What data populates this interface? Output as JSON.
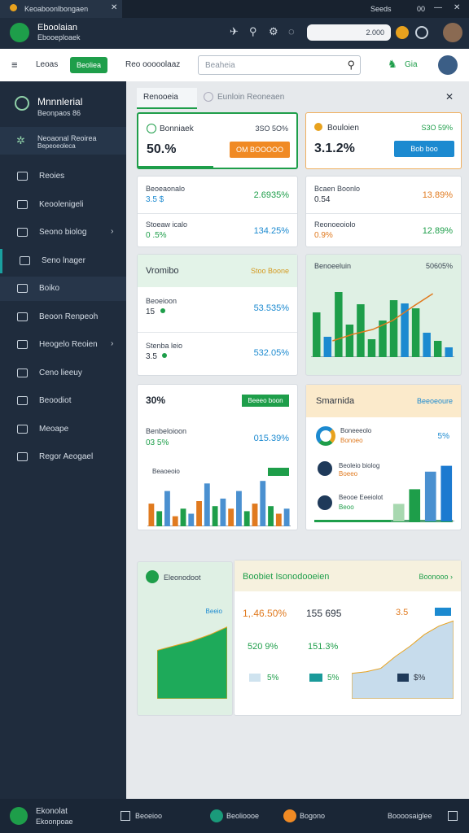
{
  "window": {
    "tab": "Keoaboonlbongaen",
    "status": "Seeds",
    "clock": "00"
  },
  "header": {
    "app_name": "Eboolaian",
    "app_sub": "Ebooeploaek",
    "search_value": "2.000"
  },
  "toolbar": {
    "menu_label": "Leoas",
    "button": "Beoliea",
    "filter": "Reo ooooolaaz",
    "search_placeholder": "Beaheia",
    "action": "Gia"
  },
  "sidebar": {
    "title": "Mnnnlerial",
    "subtitle": "Beonpaos 86",
    "active_group": "Neoaonal Reoirea",
    "active_group_sub": "Bepeoeoleca",
    "items": [
      "Reoies",
      "Keoolenigeli",
      "Seono biolog",
      "Seno lnager",
      "Boiko",
      "Beoon Renpeoh",
      "Heogelo Reoien",
      "Ceno lieeuy",
      "Beoodiot",
      "Meoape",
      "Regor Aeogael"
    ]
  },
  "tabs": [
    "Renooeia",
    "Eunloin Reoneaen"
  ],
  "kpi1": {
    "title": "Bonniaek",
    "range": "3SO 5O%",
    "value": "50.%",
    "button": "OM BOOOOO"
  },
  "kpi2": {
    "title": "Bouloien",
    "range": "S3O 59%",
    "value": "3.1.2%",
    "button": "Bob boo"
  },
  "list1": [
    {
      "label": "Beoeaonalo",
      "value": "3.5 $",
      "change": "2.6935%"
    },
    {
      "label": "Stoeaw icalo",
      "value": "0 .5%",
      "change": "134.25%"
    }
  ],
  "list2": [
    {
      "label": "Bcaen Boonlo",
      "value": "0.54",
      "change": "13.89%"
    },
    {
      "label": "Reonoeoiolo",
      "value": "0.9%",
      "change": "12.89%"
    }
  ],
  "stats": {
    "title": "Vromibo",
    "tag": "Stoo Boone",
    "rows": [
      {
        "label": "Beoeioon",
        "value": "15",
        "change": "53.535%"
      },
      {
        "label": "Stenba leio",
        "value": "3.5",
        "change": "532.05%"
      }
    ]
  },
  "panel": {
    "title": "Benoeeluin",
    "range": "50605%"
  },
  "perf": {
    "value": "30%",
    "button": "Beeeo boon",
    "label": "Benbeloioon",
    "sub": "03 5%",
    "change": "015.39%",
    "chart_label": "Beaoeoio"
  },
  "smart": {
    "title": "Smarnida",
    "link": "Beeoeoure",
    "donut_label": "Boneeeolo",
    "donut_sub": "Bonoeo",
    "donut_value": "5%",
    "rows": [
      {
        "label": "Beoleio biolog",
        "sub": "Boeeo"
      },
      {
        "label": "Beooe Eeeiolot",
        "sub": "Beoo"
      }
    ]
  },
  "eleo": {
    "title": "Eleonodoot",
    "tag": "Beeio"
  },
  "summary": {
    "title": "Boobiet Isonodooeien",
    "link": "Boonooo",
    "row1": [
      "1,.46.50%",
      "155 695",
      "3.5"
    ],
    "row2": [
      "520 9%",
      "151.3%"
    ],
    "row3": [
      "5%",
      "5%",
      "$%"
    ]
  },
  "charts": {
    "bars1": {
      "type": "bar",
      "ylim": [
        0,
        100
      ],
      "values": [
        55,
        25,
        80,
        40,
        65,
        22,
        45,
        70,
        66,
        60,
        30,
        20,
        12
      ],
      "colors": [
        "#1e9e4a",
        "#1c8ad0",
        "#1e9e4a",
        "#1e9e4a",
        "#1e9e4a",
        "#1e9e4a",
        "#1e9e4a",
        "#1e9e4a",
        "#1c8ad0",
        "#1e9e4a",
        "#1c8ad0",
        "#1e9e4a",
        "#1c8ad0"
      ],
      "line": [
        20,
        28,
        34,
        45,
        62,
        78
      ],
      "line_color": "#e07a1f"
    },
    "bars2": {
      "type": "bar",
      "ylim": [
        0,
        100
      ],
      "values": [
        45,
        30,
        70,
        20,
        35,
        25,
        50,
        85,
        40,
        55,
        35,
        70,
        30,
        45,
        90,
        40,
        25,
        35
      ],
      "colors": [
        "#e07a1f",
        "#1e9e4a",
        "#4a90d0",
        "#e07a1f",
        "#1e9e4a",
        "#4a90d0",
        "#e07a1f",
        "#4a90d0",
        "#1e9e4a",
        "#4a90d0",
        "#e07a1f",
        "#4a90d0",
        "#1e9e4a",
        "#e07a1f",
        "#4a90d0",
        "#1e9e4a",
        "#e07a1f",
        "#4a90d0"
      ]
    },
    "bars3": {
      "type": "bar",
      "ylim": [
        0,
        100
      ],
      "values": [
        30,
        55,
        85,
        95
      ],
      "colors": [
        "#a8d8b0",
        "#1e9e4a",
        "#4a90d0",
        "#1c7ad0"
      ]
    },
    "area1": {
      "type": "area",
      "ylim": [
        0,
        100
      ],
      "values": [
        62,
        68,
        74,
        82,
        92
      ],
      "color": "#1eaa5a"
    },
    "area2": {
      "type": "area",
      "ylim": [
        0,
        100
      ],
      "values": [
        30,
        32,
        36,
        50,
        62,
        76,
        86,
        92
      ],
      "color": "#c7dcec"
    }
  },
  "footer": {
    "app_name": "Ekonolat",
    "app_sub": "Ekoonpoae",
    "items": [
      "Beoeioo",
      "Beolioooe",
      "Bogono",
      "Boooosaiglee"
    ]
  }
}
